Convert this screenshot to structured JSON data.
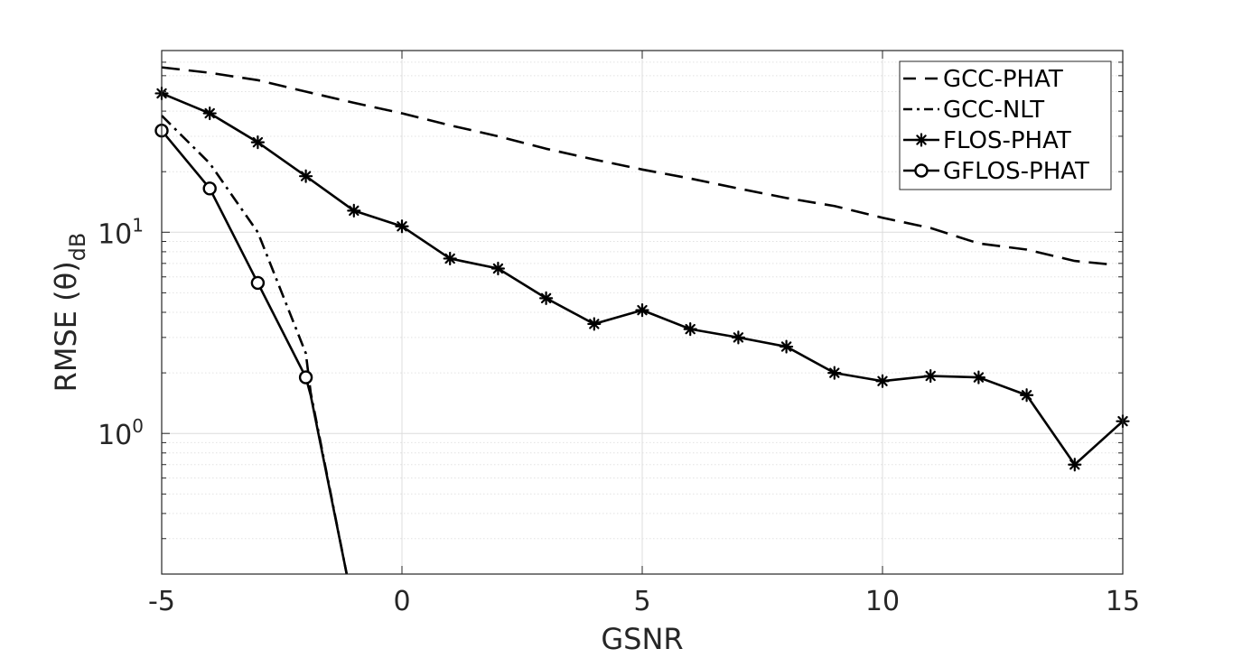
{
  "chart_data": {
    "type": "line",
    "xlabel": "GSNR",
    "ylabel": "RMSE (θ)",
    "ylabel_subscript": "dB",
    "xlim": [
      -5,
      15
    ],
    "ylim": [
      0.2,
      80
    ],
    "yscale": "log",
    "grid": true,
    "legend_position": "top-right",
    "x_ticks": [
      -5,
      0,
      5,
      10,
      15
    ],
    "x_tick_labels": [
      "-5",
      "0",
      "5",
      "10",
      "15"
    ],
    "y_ticks": [
      1,
      10
    ],
    "y_tick_bases": [
      "10",
      "10"
    ],
    "y_tick_exponents": [
      "0",
      "1"
    ],
    "line_color": "#000000",
    "series": [
      {
        "name": "GCC-PHAT",
        "style": "dashed",
        "marker": "none",
        "x": [
          -5,
          -4,
          -3,
          -2,
          -1,
          0,
          1,
          2,
          3,
          4,
          5,
          6,
          7,
          8,
          9,
          10,
          11,
          12,
          13,
          14,
          14.8
        ],
        "values": [
          66,
          62,
          57,
          50,
          44,
          39,
          34,
          30,
          26,
          23,
          20.5,
          18.5,
          16.5,
          14.8,
          13.5,
          11.8,
          10.5,
          8.8,
          8.2,
          7.2,
          6.9
        ]
      },
      {
        "name": "GCC-NLT",
        "style": "dash-dot",
        "marker": "none",
        "x": [
          -5,
          -4,
          -3,
          -2,
          -1.9,
          -1.15
        ],
        "values": [
          38,
          22,
          10,
          2.5,
          1.6,
          0.2
        ]
      },
      {
        "name": "FLOS-PHAT",
        "style": "solid",
        "marker": "asterisk",
        "x": [
          -5,
          -4,
          -3,
          -2,
          -1,
          0,
          1,
          2,
          3,
          4,
          5,
          6,
          7,
          8,
          9,
          10,
          11,
          12,
          13,
          14,
          15
        ],
        "values": [
          49,
          39,
          28,
          19,
          12.8,
          10.7,
          7.4,
          6.6,
          4.7,
          3.5,
          4.1,
          3.3,
          3.0,
          2.7,
          2.0,
          1.82,
          1.93,
          1.9,
          1.55,
          0.7,
          1.15
        ]
      },
      {
        "name": "GFLOS-PHAT",
        "style": "solid",
        "marker": "circle",
        "x": [
          -5,
          -4,
          -3,
          -2,
          -1.9,
          -1.15
        ],
        "values": [
          32,
          16.5,
          5.6,
          1.9,
          1.55,
          0.2
        ]
      }
    ]
  }
}
